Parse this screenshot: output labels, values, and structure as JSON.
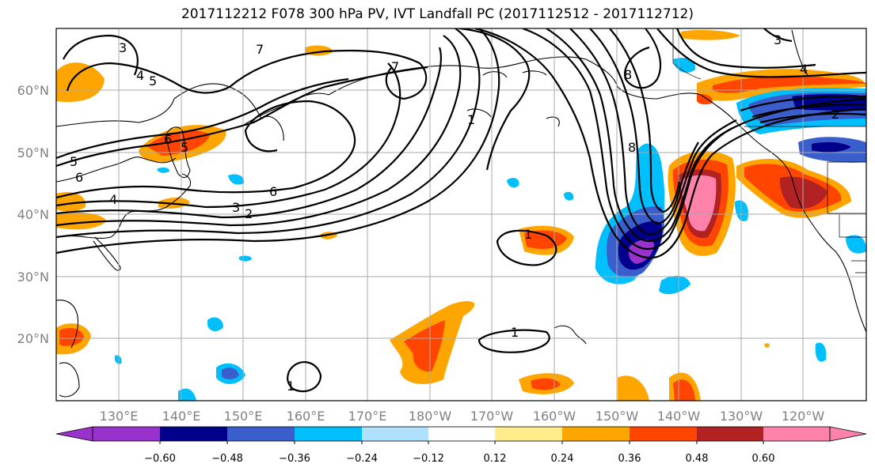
{
  "title": "2017112212 F078 300 hPa PV, IVT Landfall PC (2017112512 - 2017112712)",
  "axes": {
    "lat_labels": [
      "20°N",
      "30°N",
      "40°N",
      "50°N",
      "60°N"
    ],
    "lon_labels": [
      "130°E",
      "140°E",
      "150°E",
      "160°E",
      "170°E",
      "180°W",
      "170°W",
      "160°W",
      "150°W",
      "140°W",
      "130°W",
      "120°W"
    ]
  },
  "colorbar": {
    "tick_labels": [
      "−0.60",
      "−0.48",
      "−0.36",
      "−0.24",
      "−0.12",
      "0.12",
      "0.24",
      "0.36",
      "0.48",
      "0.60"
    ],
    "colors": [
      "#9932cc",
      "#00008b",
      "#3a5fcd",
      "#00bfff",
      "#b0e2ff",
      "#ffffff",
      "#ffec8b",
      "#ffa500",
      "#ff4500",
      "#b22222",
      "#ff82ab"
    ]
  },
  "contour_labels": [
    "3",
    "4",
    "5",
    "7",
    "5",
    "6",
    "5",
    "6",
    "4",
    "3",
    "2",
    "6",
    "7",
    "1",
    "8",
    "8",
    "3",
    "4",
    "2",
    "1",
    "1",
    "1"
  ]
}
